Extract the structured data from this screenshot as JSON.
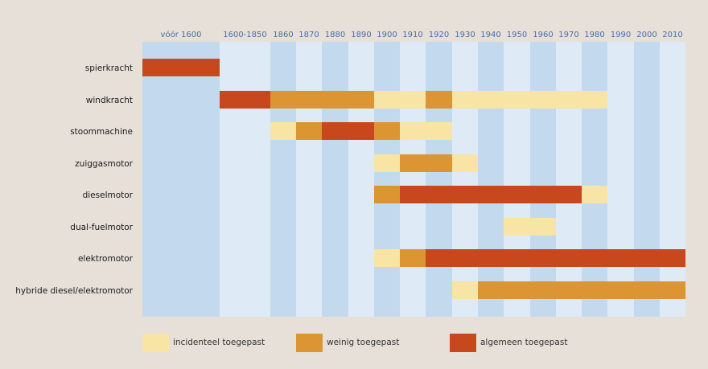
{
  "chart_data": {
    "type": "table",
    "title": "",
    "columns": [
      "vóór 1600",
      "1600-1850",
      "1860",
      "1870",
      "1880",
      "1890",
      "1900",
      "1910",
      "1920",
      "1930",
      "1940",
      "1950",
      "1960",
      "1970",
      "1980",
      "1990",
      "2000",
      "2010"
    ],
    "levels": {
      "1": {
        "label": "incidenteel toegepast",
        "color": "#f8e4a4"
      },
      "2": {
        "label": "weinig toegepast",
        "color": "#db9633"
      },
      "3": {
        "label": "algemeen toegepast",
        "color": "#c8481e"
      }
    },
    "rows": [
      {
        "name": "spierkracht",
        "segments": [
          {
            "from": "vóór 1600",
            "to": "vóór 1600",
            "level": 3
          }
        ]
      },
      {
        "name": "windkracht",
        "segments": [
          {
            "from": "1600-1850",
            "to": "1600-1850",
            "level": 3
          },
          {
            "from": "1860",
            "to": "1890",
            "level": 2
          },
          {
            "from": "1900",
            "to": "1910",
            "level": 1
          },
          {
            "from": "1920",
            "to": "1920",
            "level": 2
          },
          {
            "from": "1930",
            "to": "1980",
            "level": 1
          }
        ]
      },
      {
        "name": "stoommachine",
        "segments": [
          {
            "from": "1860",
            "to": "1860",
            "level": 1
          },
          {
            "from": "1870",
            "to": "1870",
            "level": 2
          },
          {
            "from": "1880",
            "to": "1890",
            "level": 3
          },
          {
            "from": "1900",
            "to": "1900",
            "level": 2
          },
          {
            "from": "1910",
            "to": "1920",
            "level": 1
          }
        ]
      },
      {
        "name": "zuiggasmotor",
        "segments": [
          {
            "from": "1900",
            "to": "1900",
            "level": 1
          },
          {
            "from": "1910",
            "to": "1920",
            "level": 2
          },
          {
            "from": "1930",
            "to": "1930",
            "level": 1
          }
        ]
      },
      {
        "name": "dieselmotor",
        "segments": [
          {
            "from": "1900",
            "to": "1900",
            "level": 2
          },
          {
            "from": "1910",
            "to": "1970",
            "level": 3
          },
          {
            "from": "1980",
            "to": "1980",
            "level": 1
          }
        ]
      },
      {
        "name": "dual-fuelmotor",
        "segments": [
          {
            "from": "1950",
            "to": "1960",
            "level": 1
          }
        ]
      },
      {
        "name": "elektromotor",
        "segments": [
          {
            "from": "1900",
            "to": "1900",
            "level": 1
          },
          {
            "from": "1910",
            "to": "1910",
            "level": 2
          },
          {
            "from": "1920",
            "to": "2010",
            "level": 3
          }
        ]
      },
      {
        "name": "hybride diesel/elektromotor",
        "segments": [
          {
            "from": "1930",
            "to": "1930",
            "level": 1
          },
          {
            "from": "1940",
            "to": "2010",
            "level": 2
          }
        ]
      }
    ],
    "legend": [
      "incidenteel toegepast",
      "weinig toegepast",
      "algemeen toegepast"
    ],
    "legend_position": "bottom",
    "background_colors": {
      "page": "#e6e0d8",
      "column_light": "#deebf6",
      "column_dark": "#c3daee"
    }
  }
}
